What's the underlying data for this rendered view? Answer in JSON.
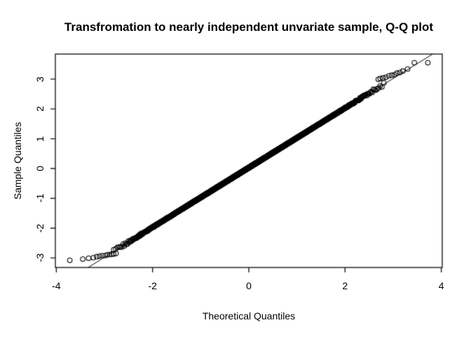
{
  "chart_data": {
    "type": "scatter",
    "subtype": "normal-qq-plot",
    "title": "Transfromation to nearly independent unvariate sample, Q-Q plot",
    "xlabel": "Theoretical Quantiles",
    "ylabel": "Sample Quantiles",
    "x_ticks": [
      -4,
      -2,
      0,
      2,
      4
    ],
    "y_ticks": [
      -3,
      -2,
      -1,
      0,
      1,
      2,
      3
    ],
    "xlim": [
      -4.02,
      4.02
    ],
    "ylim": [
      -3.32,
      3.84
    ],
    "grid": false,
    "legend": null,
    "marker": "open-circle",
    "marker_radius_px": 3.3,
    "colors": {
      "point": "#000000",
      "reference_line": "#000000",
      "axis": "#1a1a1a",
      "background": "#ffffff",
      "title": "#000000"
    },
    "n_points": 3000,
    "band": {
      "slope": 1,
      "offset": 0.03,
      "noise_sd_center": 0.01,
      "noise_sd_tail": 0.06,
      "t_cutoff": 2.85
    },
    "reference_line": {
      "slope": 1,
      "intercept": 0.02
    },
    "left_tail_points": [
      [
        -3.72,
        -3.08
      ],
      [
        -3.45,
        -3.04
      ],
      [
        -3.33,
        -3.01
      ],
      [
        -3.23,
        -2.99
      ],
      [
        -3.16,
        -2.96
      ],
      [
        -3.1,
        -2.94
      ],
      [
        -3.04,
        -2.92
      ],
      [
        -2.98,
        -2.92
      ],
      [
        -2.94,
        -2.89
      ],
      [
        -2.89,
        -2.89
      ],
      [
        -2.85,
        -2.87
      ],
      [
        -2.81,
        -2.87
      ],
      [
        -2.76,
        -2.85
      ]
    ],
    "right_tail_points": [
      [
        2.69,
        2.99
      ],
      [
        2.73,
        3.02
      ],
      [
        2.79,
        3.04
      ],
      [
        2.85,
        3.06
      ],
      [
        2.91,
        3.11
      ],
      [
        2.97,
        3.13
      ],
      [
        3.03,
        3.15
      ],
      [
        3.08,
        3.2
      ],
      [
        3.14,
        3.22
      ],
      [
        3.2,
        3.27
      ],
      [
        3.3,
        3.34
      ],
      [
        3.44,
        3.55
      ],
      [
        3.72,
        3.55
      ]
    ]
  }
}
